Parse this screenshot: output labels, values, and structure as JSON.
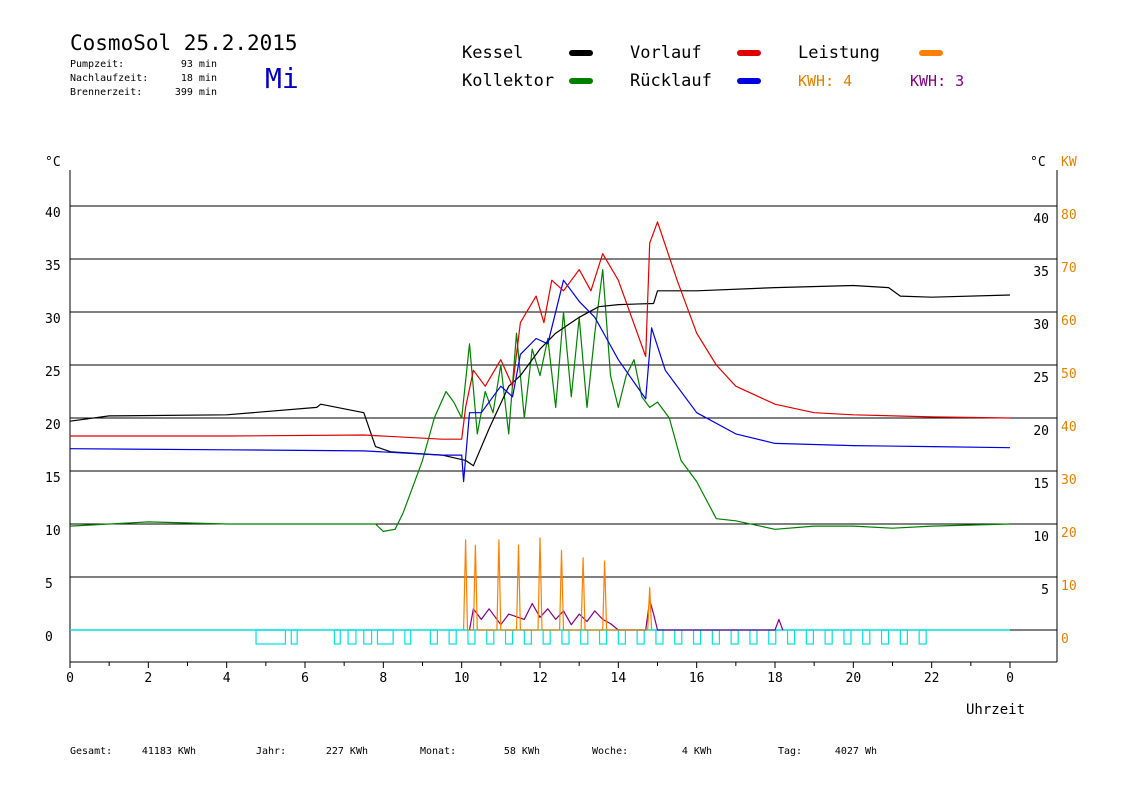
{
  "header": {
    "title": "CosmoSol 25.2.2015",
    "weekday": "Mi",
    "stats": [
      {
        "label": "Pumpzeit:",
        "value": "93 min"
      },
      {
        "label": "Nachlaufzeit:",
        "value": "18 min"
      },
      {
        "label": "Brennerzeit:",
        "value": "399 min"
      }
    ]
  },
  "footer": {
    "items": [
      {
        "label": "Gesamt:",
        "value": "41183 KWh"
      },
      {
        "label": "Jahr:",
        "value": "227 KWh"
      },
      {
        "label": "Monat:",
        "value": "58 KWh"
      },
      {
        "label": "Woche:",
        "value": "4 KWh"
      },
      {
        "label": "Tag:",
        "value": "4027 Wh"
      }
    ]
  },
  "colors": {
    "kessel": "#000000",
    "vorlauf": "#e00000",
    "leistung": "#ff8000",
    "kollektor": "#008000",
    "ruecklauf": "#0000e0",
    "kwh2": "#800080",
    "pump": "#00e0e0",
    "axis_right_kw": "#e08000",
    "weekday": "#0000c0"
  },
  "chart_data": {
    "type": "line",
    "xlabel": "Uhrzeit",
    "ylabel_left": "°C",
    "ylabel_right": "°C",
    "ylabel_right2": "KW",
    "xlim": [
      0,
      24
    ],
    "ylim": [
      -3,
      47
    ],
    "x_ticks": [
      "0",
      "2",
      "4",
      "6",
      "8",
      "10",
      "12",
      "14",
      "16",
      "18",
      "20",
      "22",
      "0"
    ],
    "y_ticks_left": [
      "0",
      "5",
      "10",
      "15",
      "20",
      "25",
      "30",
      "35",
      "40"
    ],
    "y_ticks_right": [
      "5",
      "10",
      "15",
      "20",
      "25",
      "30",
      "35",
      "40"
    ],
    "y_ticks_kw": [
      "0",
      "10",
      "20",
      "30",
      "40",
      "50",
      "60",
      "70",
      "80"
    ],
    "legend": [
      {
        "name": "Kessel",
        "color": "#000000"
      },
      {
        "name": "Vorlauf",
        "color": "#e00000"
      },
      {
        "name": "Leistung",
        "color": "#ff8000"
      },
      {
        "name": "Kollektor",
        "color": "#008000"
      },
      {
        "name": "Rücklauf",
        "color": "#0000e0"
      },
      {
        "name": "KWH: 4",
        "color": "#e08000"
      },
      {
        "name": "KWH: 3",
        "color": "#800080"
      }
    ],
    "series": [
      {
        "name": "Kessel",
        "color": "#000000",
        "x": [
          0,
          1,
          4,
          6.3,
          6.4,
          7.5,
          7.8,
          8.2,
          9.5,
          10.1,
          10.3,
          10.7,
          11.2,
          11.5,
          12.0,
          12.4,
          13.0,
          13.5,
          14.0,
          14.9,
          15.0,
          16,
          18,
          20,
          20.9,
          21.2,
          22,
          24
        ],
        "y": [
          19.7,
          20.2,
          20.3,
          21.0,
          21.3,
          20.5,
          17.3,
          16.8,
          16.5,
          16.0,
          15.5,
          19.0,
          23.0,
          24.0,
          26.5,
          28.0,
          29.5,
          30.5,
          30.7,
          30.8,
          32.0,
          32.0,
          32.3,
          32.5,
          32.3,
          31.5,
          31.4,
          31.6
        ]
      },
      {
        "name": "Vorlauf",
        "color": "#e00000",
        "x": [
          0,
          4,
          7.5,
          9.5,
          10.0,
          10.1,
          10.3,
          10.6,
          11.0,
          11.3,
          11.5,
          11.9,
          12.1,
          12.3,
          12.6,
          13.0,
          13.3,
          13.6,
          14.0,
          14.7,
          14.8,
          15.0,
          15.5,
          16.0,
          16.5,
          17.0,
          18.0,
          19.0,
          20.0,
          22.0,
          24.0
        ],
        "y": [
          18.3,
          18.3,
          18.4,
          18.0,
          18.0,
          21.0,
          24.5,
          23.0,
          25.5,
          23.0,
          29.0,
          31.5,
          29.0,
          33.0,
          32.0,
          34.0,
          32.0,
          35.5,
          33.0,
          25.8,
          36.5,
          38.5,
          33.0,
          28.0,
          25.0,
          23.0,
          21.3,
          20.5,
          20.3,
          20.1,
          20.0
        ]
      },
      {
        "name": "Rücklauf",
        "color": "#0000e0",
        "x": [
          0,
          4,
          7.5,
          9.5,
          10.0,
          10.05,
          10.2,
          10.5,
          11.0,
          11.3,
          11.5,
          11.9,
          12.2,
          12.6,
          13.0,
          13.4,
          13.7,
          14.0,
          14.7,
          14.85,
          15.2,
          16.0,
          17.0,
          18.0,
          20.0,
          22.0,
          24.0
        ],
        "y": [
          17.1,
          17.0,
          16.9,
          16.5,
          16.5,
          14.0,
          20.5,
          20.5,
          23.0,
          22.0,
          26.0,
          27.5,
          27.0,
          33.0,
          31.0,
          29.5,
          27.5,
          25.5,
          21.8,
          28.5,
          24.5,
          20.5,
          18.5,
          17.6,
          17.4,
          17.3,
          17.2
        ]
      },
      {
        "name": "Kollektor",
        "color": "#008000",
        "x": [
          0,
          2,
          4,
          7.8,
          8.0,
          8.3,
          8.5,
          8.7,
          9.0,
          9.3,
          9.6,
          9.8,
          10.0,
          10.2,
          10.4,
          10.6,
          10.8,
          11.0,
          11.2,
          11.4,
          11.6,
          11.8,
          12.0,
          12.2,
          12.4,
          12.6,
          12.8,
          13.0,
          13.2,
          13.4,
          13.6,
          13.8,
          14.0,
          14.2,
          14.4,
          14.6,
          14.8,
          15.0,
          15.3,
          15.6,
          16.0,
          16.5,
          17.0,
          18.0,
          19.0,
          20.0,
          21.0,
          22.0,
          24.0
        ],
        "y": [
          9.8,
          10.2,
          10.0,
          10.0,
          9.3,
          9.5,
          11.0,
          13.0,
          16.0,
          20.0,
          22.5,
          21.5,
          20.0,
          27.0,
          18.5,
          22.5,
          20.5,
          25.0,
          18.5,
          28.0,
          20.0,
          26.5,
          24.0,
          27.5,
          21.0,
          30.0,
          22.0,
          29.5,
          21.0,
          28.0,
          34.0,
          24.0,
          21.0,
          24.0,
          25.5,
          22.0,
          21.0,
          21.5,
          20.0,
          16.0,
          14.0,
          10.5,
          10.3,
          9.5,
          9.8,
          9.8,
          9.6,
          9.8,
          10.0
        ]
      },
      {
        "name": "Leistung",
        "color": "#ff8000",
        "x": [
          10.05,
          10.1,
          10.15,
          10.3,
          10.35,
          10.4,
          10.9,
          10.95,
          11.0,
          11.4,
          11.45,
          11.5,
          11.95,
          12.0,
          12.05,
          12.5,
          12.55,
          12.6,
          13.05,
          13.1,
          13.15,
          13.6,
          13.65,
          13.7,
          14.75,
          14.8,
          14.85
        ],
        "y": [
          0,
          8.5,
          0,
          0,
          8.0,
          0,
          0,
          8.5,
          0,
          0,
          8.0,
          0,
          0,
          8.7,
          0,
          0,
          7.5,
          0,
          0,
          6.8,
          0,
          0,
          6.5,
          0,
          0,
          4.0,
          0
        ]
      },
      {
        "name": "KWH: 3",
        "color": "#800080",
        "x": [
          10.2,
          10.3,
          10.5,
          10.7,
          11.0,
          11.2,
          11.6,
          11.8,
          12.0,
          12.2,
          12.4,
          12.6,
          12.8,
          13.0,
          13.2,
          13.4,
          13.6,
          13.8,
          14.0,
          14.7,
          14.8,
          14.9,
          15.0,
          18.0,
          18.1,
          18.2
        ],
        "y": [
          0,
          2.0,
          1.0,
          2.0,
          0.5,
          1.5,
          1.0,
          2.5,
          1.2,
          2.0,
          1.0,
          1.8,
          0.5,
          1.5,
          0.8,
          1.8,
          1.0,
          0.6,
          0,
          0,
          2.8,
          1.5,
          0,
          0,
          1.0,
          0
        ]
      }
    ],
    "pump_blocks": [
      [
        4.75,
        5.5
      ],
      [
        5.65,
        5.8
      ],
      [
        6.75,
        6.9
      ],
      [
        7.1,
        7.3
      ],
      [
        7.5,
        7.7
      ],
      [
        7.85,
        8.25
      ],
      [
        8.55,
        8.7
      ]
    ]
  }
}
